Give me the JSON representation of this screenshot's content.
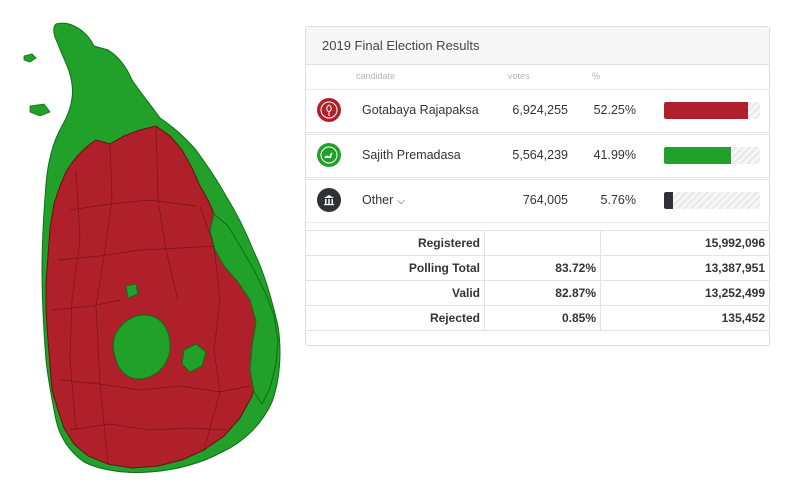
{
  "map": {
    "colors": {
      "red": "#b0202a",
      "green": "#21a02a",
      "outline": "#6a0e14"
    }
  },
  "panel": {
    "title": "2019 Final Election Results",
    "columns": {
      "candidate": "candidate",
      "votes": "votes",
      "pct": "%"
    }
  },
  "candidates": [
    {
      "name": "Gotabaya Rajapaksa",
      "votes": "6,924,255",
      "pct": "52.25%",
      "share": 0.5225,
      "color": "#b0202a",
      "icon": "pohottuwa-flower-icon"
    },
    {
      "name": "Sajith Premadasa",
      "votes": "5,564,239",
      "pct": "41.99%",
      "share": 0.4199,
      "color": "#21a02a",
      "icon": "swan-icon"
    },
    {
      "name": "Other",
      "votes": "764,005",
      "pct": "5.76%",
      "share": 0.0576,
      "color": "#2f3136",
      "icon": "building-icon"
    }
  ],
  "stats": {
    "registered": {
      "label": "Registered",
      "pct": "",
      "value": "15,992,096"
    },
    "polling": {
      "label": "Polling Total",
      "pct": "83.72%",
      "value": "13,387,951"
    },
    "valid": {
      "label": "Valid",
      "pct": "82.87%",
      "value": "13,252,499"
    },
    "rejected": {
      "label": "Rejected",
      "pct": "0.85%",
      "value": "135,452"
    }
  }
}
